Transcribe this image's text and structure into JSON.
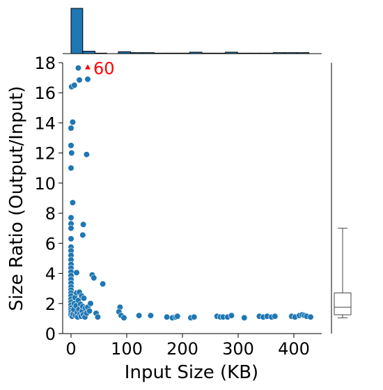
{
  "chart_data": {
    "type": "scatter",
    "title": "",
    "xlabel": "Input Size (KB)",
    "ylabel": "Size Ratio (Output/Input)",
    "xlim": [
      -15,
      450
    ],
    "ylim": [
      0,
      18
    ],
    "xticks": [
      0,
      100,
      200,
      300,
      400
    ],
    "yticks": [
      0,
      2,
      4,
      6,
      8,
      10,
      12,
      14,
      16,
      18
    ],
    "grid": false,
    "colors": {
      "points": "#1f77b4",
      "outlier": "#ff0000",
      "box": "#444444"
    },
    "outlier": {
      "x": 30,
      "y": 60,
      "label": "60",
      "display_y": 17.7
    },
    "points": [
      {
        "x": 1,
        "y": 16.4
      },
      {
        "x": 6,
        "y": 16.5
      },
      {
        "x": 15,
        "y": 16.85
      },
      {
        "x": 30,
        "y": 16.9
      },
      {
        "x": 13,
        "y": 17.65
      },
      {
        "x": 3,
        "y": 14.05
      },
      {
        "x": 0,
        "y": 13.65
      },
      {
        "x": 0,
        "y": 12.5
      },
      {
        "x": 1,
        "y": 12.0
      },
      {
        "x": 0,
        "y": 11.0
      },
      {
        "x": 28,
        "y": 11.9
      },
      {
        "x": 3,
        "y": 8.7
      },
      {
        "x": 0,
        "y": 7.7
      },
      {
        "x": 0,
        "y": 7.3
      },
      {
        "x": 0,
        "y": 7.0
      },
      {
        "x": 0,
        "y": 6.3
      },
      {
        "x": 0,
        "y": 5.75
      },
      {
        "x": 0,
        "y": 5.5
      },
      {
        "x": 0,
        "y": 5.2
      },
      {
        "x": 0,
        "y": 4.9
      },
      {
        "x": 0,
        "y": 4.6
      },
      {
        "x": 0,
        "y": 4.35
      },
      {
        "x": 0,
        "y": 4.1
      },
      {
        "x": 0,
        "y": 3.85
      },
      {
        "x": 0,
        "y": 3.6
      },
      {
        "x": 0,
        "y": 3.35
      },
      {
        "x": 0,
        "y": 3.1
      },
      {
        "x": 0,
        "y": 2.9
      },
      {
        "x": 0,
        "y": 2.7
      },
      {
        "x": 0,
        "y": 2.5
      },
      {
        "x": 0,
        "y": 2.3
      },
      {
        "x": 0,
        "y": 2.1
      },
      {
        "x": 0,
        "y": 1.9
      },
      {
        "x": 0,
        "y": 1.7
      },
      {
        "x": 0,
        "y": 1.55
      },
      {
        "x": 0,
        "y": 1.4
      },
      {
        "x": 0,
        "y": 1.25
      },
      {
        "x": 2,
        "y": 1.15
      },
      {
        "x": 4,
        "y": 1.3
      },
      {
        "x": 5,
        "y": 1.6
      },
      {
        "x": 6,
        "y": 2.0
      },
      {
        "x": 7,
        "y": 2.4
      },
      {
        "x": 8,
        "y": 1.2
      },
      {
        "x": 9,
        "y": 1.85
      },
      {
        "x": 10,
        "y": 2.7
      },
      {
        "x": 11,
        "y": 1.4
      },
      {
        "x": 12,
        "y": 1.1
      },
      {
        "x": 13,
        "y": 2.2
      },
      {
        "x": 14,
        "y": 1.6
      },
      {
        "x": 15,
        "y": 2.75
      },
      {
        "x": 16,
        "y": 1.3
      },
      {
        "x": 17,
        "y": 1.95
      },
      {
        "x": 18,
        "y": 1.15
      },
      {
        "x": 19,
        "y": 2.5
      },
      {
        "x": 20,
        "y": 1.5
      },
      {
        "x": 21,
        "y": 1.8
      },
      {
        "x": 22,
        "y": 1.25
      },
      {
        "x": 23,
        "y": 2.35
      },
      {
        "x": 25,
        "y": 1.1
      },
      {
        "x": 26,
        "y": 1.7
      },
      {
        "x": 28,
        "y": 1.35
      },
      {
        "x": 30,
        "y": 1.75
      },
      {
        "x": 33,
        "y": 1.5
      },
      {
        "x": 10,
        "y": 4.05
      },
      {
        "x": 22,
        "y": 7.25
      },
      {
        "x": 21,
        "y": 6.55
      },
      {
        "x": 38,
        "y": 3.9
      },
      {
        "x": 41,
        "y": 3.7
      },
      {
        "x": 57,
        "y": 3.3
      },
      {
        "x": 45,
        "y": 1.35
      },
      {
        "x": 48,
        "y": 1.1
      },
      {
        "x": 35,
        "y": 2.0
      },
      {
        "x": 88,
        "y": 1.75
      },
      {
        "x": 86,
        "y": 1.45
      },
      {
        "x": 90,
        "y": 1.2
      },
      {
        "x": 95,
        "y": 1.05
      },
      {
        "x": 122,
        "y": 1.2
      },
      {
        "x": 143,
        "y": 1.2
      },
      {
        "x": 172,
        "y": 1.1
      },
      {
        "x": 182,
        "y": 1.05
      },
      {
        "x": 188,
        "y": 1.1
      },
      {
        "x": 191,
        "y": 1.15
      },
      {
        "x": 215,
        "y": 1.05
      },
      {
        "x": 221,
        "y": 1.1
      },
      {
        "x": 262,
        "y": 1.15
      },
      {
        "x": 268,
        "y": 1.1
      },
      {
        "x": 273,
        "y": 1.1
      },
      {
        "x": 281,
        "y": 1.1
      },
      {
        "x": 288,
        "y": 1.2
      },
      {
        "x": 311,
        "y": 1.05
      },
      {
        "x": 338,
        "y": 1.15
      },
      {
        "x": 345,
        "y": 1.1
      },
      {
        "x": 352,
        "y": 1.15
      },
      {
        "x": 360,
        "y": 1.1
      },
      {
        "x": 366,
        "y": 1.15
      },
      {
        "x": 396,
        "y": 1.15
      },
      {
        "x": 402,
        "y": 1.1
      },
      {
        "x": 410,
        "y": 1.2
      },
      {
        "x": 415,
        "y": 1.25
      },
      {
        "x": 419,
        "y": 1.2
      },
      {
        "x": 423,
        "y": 1.15
      },
      {
        "x": 430,
        "y": 1.1
      }
    ],
    "histogram_x": {
      "bins": [
        {
          "x0": 0,
          "x1": 21,
          "count": 95
        },
        {
          "x0": 21,
          "x1": 43,
          "count": 5
        },
        {
          "x0": 43,
          "x1": 64,
          "count": 1
        },
        {
          "x0": 64,
          "x1": 85,
          "count": 0
        },
        {
          "x0": 85,
          "x1": 107,
          "count": 4
        },
        {
          "x0": 107,
          "x1": 128,
          "count": 2
        },
        {
          "x0": 128,
          "x1": 149,
          "count": 2
        },
        {
          "x0": 149,
          "x1": 171,
          "count": 1
        },
        {
          "x0": 171,
          "x1": 192,
          "count": 1
        },
        {
          "x0": 192,
          "x1": 213,
          "count": 1
        },
        {
          "x0": 213,
          "x1": 235,
          "count": 3
        },
        {
          "x0": 235,
          "x1": 256,
          "count": 1
        },
        {
          "x0": 256,
          "x1": 277,
          "count": 1
        },
        {
          "x0": 277,
          "x1": 299,
          "count": 3
        },
        {
          "x0": 299,
          "x1": 320,
          "count": 1
        },
        {
          "x0": 320,
          "x1": 341,
          "count": 1
        },
        {
          "x0": 341,
          "x1": 363,
          "count": 1
        },
        {
          "x0": 363,
          "x1": 384,
          "count": 2
        },
        {
          "x0": 384,
          "x1": 405,
          "count": 2
        },
        {
          "x0": 405,
          "x1": 427,
          "count": 2
        }
      ]
    },
    "boxplot_y": {
      "whisker_low": 1.05,
      "q1": 1.25,
      "median": 1.75,
      "q3": 2.7,
      "whisker_high": 7.0
    }
  }
}
